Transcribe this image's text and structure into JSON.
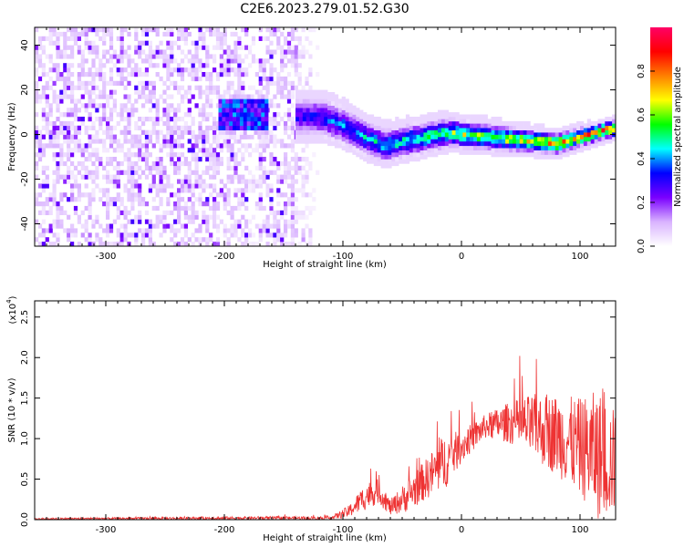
{
  "title": "C2E6.2023.279.01.52.G30",
  "chart_data": [
    {
      "type": "heatmap",
      "title": "C2E6.2023.279.01.52.G30",
      "xlabel": "Height of straight line (km)",
      "ylabel": "Frequency (Hz)",
      "xlim": [
        -360,
        130
      ],
      "ylim": [
        -50,
        48
      ],
      "xticks": [
        -300,
        -200,
        -100,
        0,
        100
      ],
      "xtick_labels": [
        "-300",
        "-200",
        "-100",
        "0",
        "100"
      ],
      "yticks": [
        -40,
        -20,
        0,
        20,
        40
      ],
      "ytick_labels": [
        "-40",
        "-20",
        "0",
        "20",
        "40"
      ],
      "colorbar": {
        "label": "Normalized spectral amplitude",
        "range": [
          0,
          1
        ],
        "ticks": [
          0.0,
          0.2,
          0.4,
          0.6,
          0.8
        ],
        "tick_labels": [
          "0.0",
          "0.2",
          "0.4",
          "0.6",
          "0.8"
        ],
        "colormap": [
          "#ffffff",
          "#d9b3ff",
          "#7a00ff",
          "#0000ff",
          "#00ffff",
          "#00ff00",
          "#ffff00",
          "#ff8000",
          "#ff0000",
          "#ff0066"
        ]
      },
      "regions": [
        {
          "x": [
            -360,
            -120
          ],
          "y": [
            -50,
            48
          ],
          "amplitude": 0.2,
          "pattern": "broadband noise",
          "gap_x": [
            -182,
            -172
          ]
        },
        {
          "x": [
            -205,
            -165
          ],
          "y": [
            2,
            14
          ],
          "amplitude": 0.35,
          "pattern": "blob"
        },
        {
          "x": [
            -140,
            130
          ],
          "y_center": [
            [
              -140,
              8
            ],
            [
              -120,
              8
            ],
            [
              -100,
              4
            ],
            [
              -80,
              -2
            ],
            [
              -65,
              -5
            ],
            [
              -50,
              -3
            ],
            [
              -30,
              -1
            ],
            [
              -10,
              1
            ],
            [
              0,
              0
            ],
            [
              20,
              -1
            ],
            [
              40,
              -2
            ],
            [
              60,
              -3
            ],
            [
              80,
              -4
            ],
            [
              100,
              -1
            ],
            [
              120,
              2
            ],
            [
              130,
              3
            ]
          ],
          "peak_amplitude": 0.95,
          "pattern": "ridge"
        }
      ]
    },
    {
      "type": "line",
      "xlabel": "Height of straight line (km)",
      "ylabel": "SNR (10 * v/v)",
      "y_multiplier_label": "(x10",
      "y_multiplier_exponent": "4",
      "xlim": [
        -360,
        130
      ],
      "ylim": [
        0,
        2.7
      ],
      "xticks": [
        -300,
        -200,
        -100,
        0,
        100
      ],
      "xtick_labels": [
        "-300",
        "-200",
        "-100",
        "0",
        "100"
      ],
      "yticks": [
        0.0,
        0.5,
        1.0,
        1.5,
        2.0,
        2.5
      ],
      "ytick_labels": [
        "0.0",
        "0.5",
        "1.0",
        "1.5",
        "2.0",
        "2.5"
      ],
      "series_color": "#ee3333",
      "envelope": [
        {
          "x": -360,
          "base": 0.01,
          "spread": 0.02
        },
        {
          "x": -180,
          "base": 0.02,
          "spread": 0.04
        },
        {
          "x": -110,
          "base": 0.02,
          "spread": 0.04
        },
        {
          "x": -95,
          "base": 0.1,
          "spread": 0.15
        },
        {
          "x": -80,
          "base": 0.3,
          "spread": 0.35
        },
        {
          "x": -70,
          "base": 0.35,
          "spread": 0.3
        },
        {
          "x": -60,
          "base": 0.15,
          "spread": 0.2
        },
        {
          "x": -45,
          "base": 0.3,
          "spread": 0.4
        },
        {
          "x": -30,
          "base": 0.5,
          "spread": 0.5
        },
        {
          "x": -15,
          "base": 0.7,
          "spread": 0.7
        },
        {
          "x": 0,
          "base": 0.9,
          "spread": 0.4
        },
        {
          "x": 20,
          "base": 1.15,
          "spread": 0.3
        },
        {
          "x": 40,
          "base": 1.2,
          "spread": 0.5
        },
        {
          "x": 60,
          "base": 1.15,
          "spread": 0.8
        },
        {
          "x": 80,
          "base": 1.05,
          "spread": 1.0
        },
        {
          "x": 100,
          "base": 0.9,
          "spread": 1.2
        },
        {
          "x": 115,
          "base": 0.8,
          "spread": 1.6
        },
        {
          "x": 130,
          "base": 0.7,
          "spread": 1.3
        }
      ]
    }
  ]
}
